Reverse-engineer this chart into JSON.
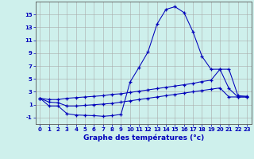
{
  "hours": [
    0,
    1,
    2,
    3,
    4,
    5,
    6,
    7,
    8,
    9,
    10,
    11,
    12,
    13,
    14,
    15,
    16,
    17,
    18,
    19,
    20,
    21,
    22,
    23
  ],
  "temp_main": [
    2,
    0.8,
    0.8,
    -0.4,
    -0.6,
    -0.65,
    -0.7,
    -0.8,
    -0.7,
    -0.5,
    4.5,
    6.8,
    9.2,
    13.5,
    15.8,
    16.2,
    15.3,
    12.3,
    8.5,
    6.5,
    6.5,
    3.5,
    2.2,
    2.2
  ],
  "temp_upper": [
    2.0,
    1.8,
    1.8,
    2.0,
    2.1,
    2.2,
    2.3,
    2.4,
    2.6,
    2.7,
    2.9,
    3.1,
    3.3,
    3.5,
    3.7,
    3.9,
    4.1,
    4.3,
    4.6,
    4.8,
    6.5,
    6.5,
    2.4,
    2.3
  ],
  "temp_lower": [
    2.0,
    1.4,
    1.3,
    0.8,
    0.8,
    0.9,
    1.0,
    1.1,
    1.2,
    1.4,
    1.6,
    1.8,
    2.0,
    2.2,
    2.4,
    2.6,
    2.8,
    3.0,
    3.2,
    3.4,
    3.6,
    2.2,
    2.2,
    2.2
  ],
  "line_color": "#0000bb",
  "bg_color": "#cef0ec",
  "grid_color": "#aaaaaa",
  "xlabel": "Graphe des températures (°c)",
  "ylabel_ticks": [
    -1,
    1,
    3,
    5,
    7,
    9,
    11,
    13,
    15
  ],
  "ylim": [
    -2.0,
    17.0
  ],
  "xlim": [
    -0.5,
    23.5
  ]
}
